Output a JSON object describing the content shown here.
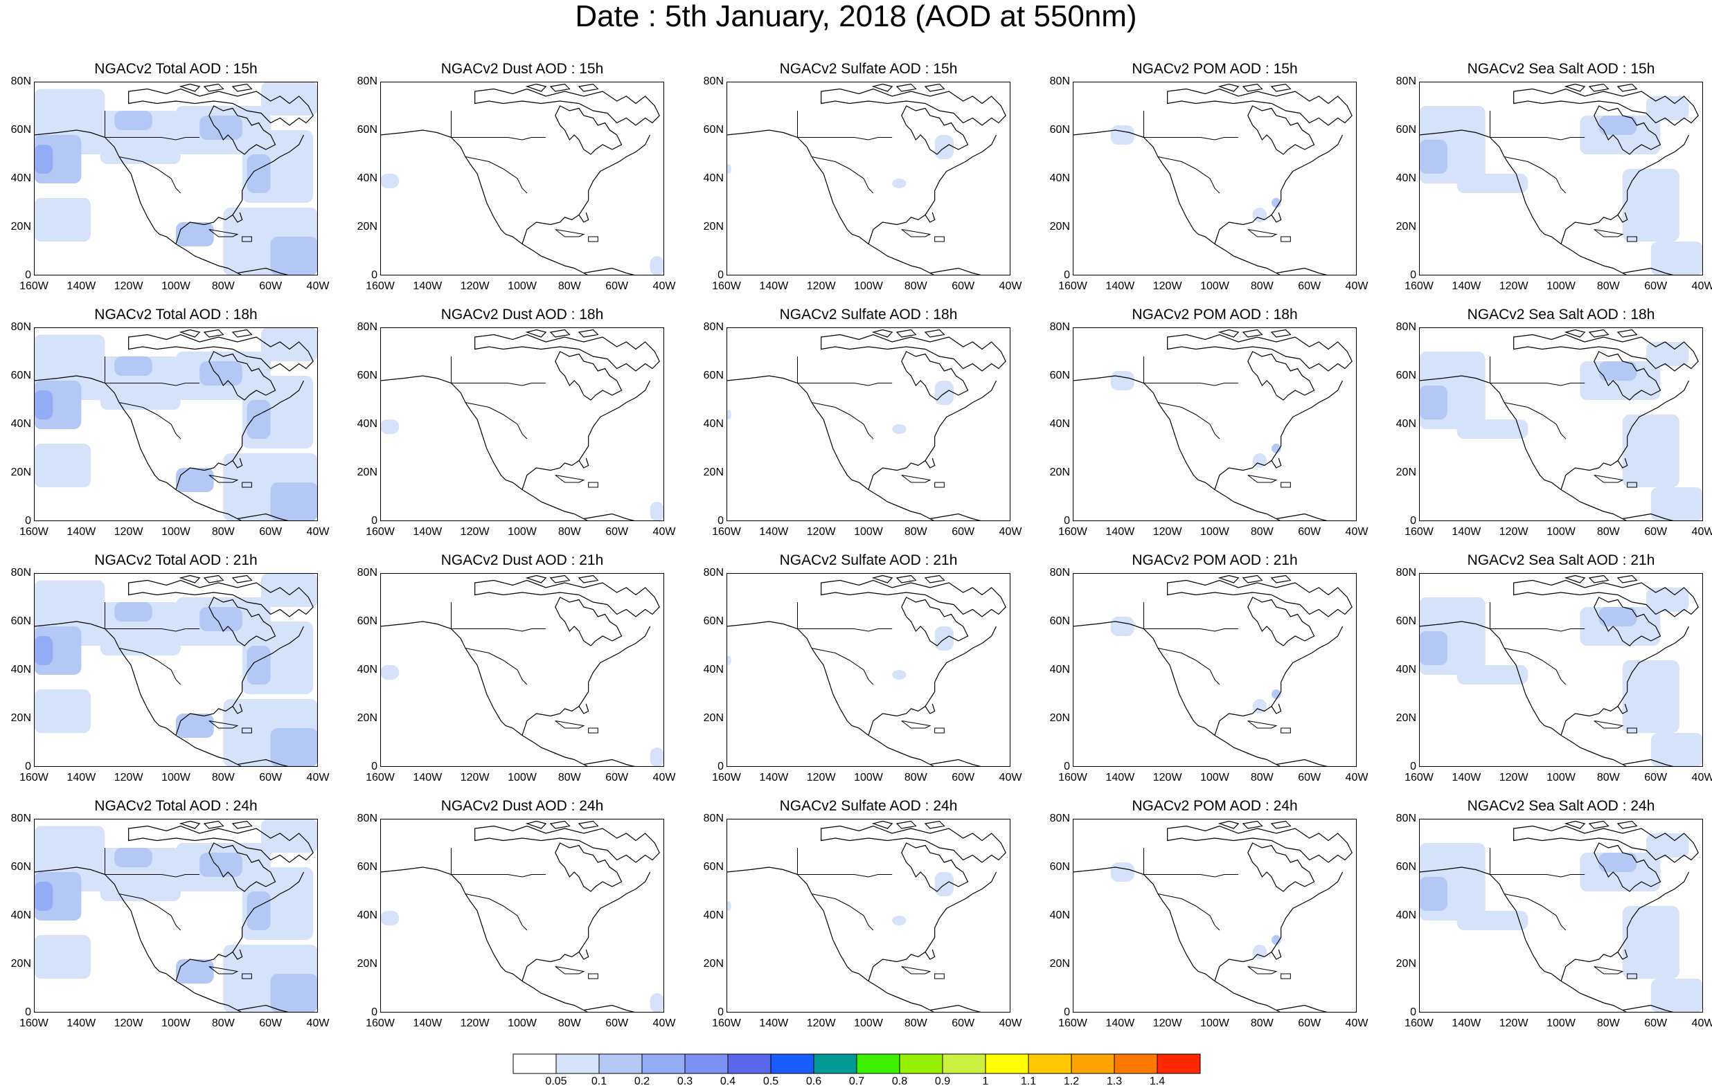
{
  "title": "Date : 5th January, 2018 (AOD at 550nm)",
  "columns": [
    "Total AOD",
    "Dust AOD",
    "Sulfate AOD",
    "POM AOD",
    "Sea Salt AOD"
  ],
  "panel_titles": [
    [
      "NGACv2 Total AOD : 15h",
      "NGACv2 Dust AOD : 15h",
      "NGACv2 Sulfate AOD : 15h",
      "NGACv2 POM AOD : 15h",
      "NGACv2 Sea Salt AOD : 15h"
    ],
    [
      "NGACv2 Total AOD : 18h",
      "NGACv2 Dust AOD : 18h",
      "NGACv2 Sulfate AOD : 18h",
      "NGACv2 POM AOD : 18h",
      "NGACv2 Sea Salt AOD : 18h"
    ],
    [
      "NGACv2 Total AOD : 21h",
      "NGACv2 Dust AOD : 21h",
      "NGACv2 Sulfate AOD : 21h",
      "NGACv2 POM AOD : 21h",
      "NGACv2 Sea Salt AOD : 21h"
    ],
    [
      "NGACv2 Total AOD : 24h",
      "NGACv2 Dust AOD : 24h",
      "NGACv2 Sulfate AOD : 24h",
      "NGACv2 POM AOD : 24h",
      "NGACv2 Sea Salt  AOD : 24h"
    ]
  ],
  "lat_ticks": [
    "80N",
    "60N",
    "40N",
    "20N",
    "0"
  ],
  "lon_ticks": [
    "160W",
    "140W",
    "120W",
    "100W",
    "80W",
    "60W",
    "40W"
  ],
  "lat_range": [
    0,
    80
  ],
  "lon_range": [
    -160,
    -40
  ],
  "colorbar": {
    "labels": [
      "0.05",
      "0.1",
      "0.2",
      "0.3",
      "0.4",
      "0.5",
      "0.6",
      "0.7",
      "0.8",
      "0.9",
      "1",
      "1.1",
      "1.2",
      "1.3",
      "1.4"
    ],
    "colors": [
      "#ffffff",
      "#d6e2fa",
      "#b4c8f6",
      "#93acf6",
      "#7a90f2",
      "#5a66ec",
      "#1a5cff",
      "#009a96",
      "#3cf000",
      "#96f000",
      "#cbf041",
      "#ffff00",
      "#ffc800",
      "#ffa400",
      "#ff7800",
      "#ff2800"
    ]
  },
  "aod_colors": {
    "low": "#d6e2fa",
    "mid": "#b4c8f6",
    "high": "#93acf6",
    "coast": "#000000"
  }
}
